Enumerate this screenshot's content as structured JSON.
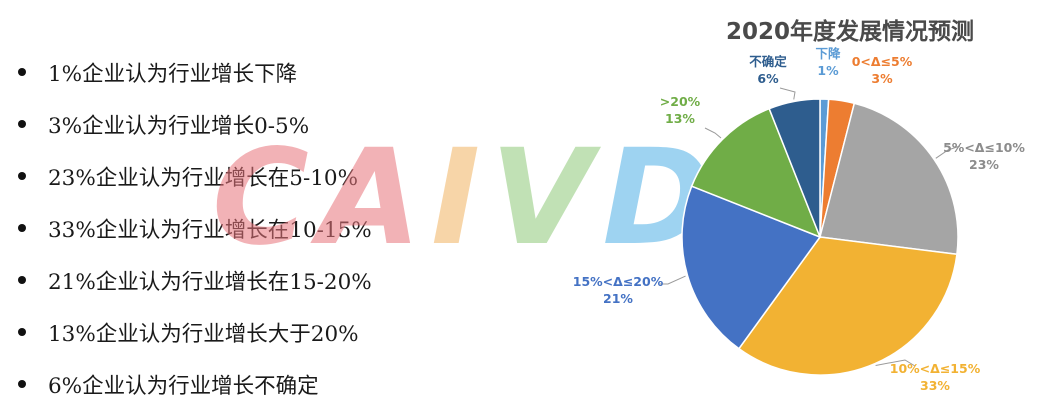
{
  "bullets": [
    "1%企业认为行业增长下降",
    "3%企业认为行业增长0-5%",
    "23%企业认为行业增长在5-10%",
    "33%企业认为行业增长在10-15%",
    "21%企业认为行业增长在15-20%",
    "13%企业认为行业增长大于20%",
    "6%企业认为行业增长不确定"
  ],
  "watermark": {
    "text": "CAIVD",
    "colors": [
      "#e8747b",
      "#e8747b",
      "#f2b462",
      "#8fca7a",
      "#4fb0e6"
    ]
  },
  "chart_data": {
    "type": "pie",
    "title": "2020年度发展情况预测",
    "slices": [
      {
        "label": "下降",
        "value_label": "1%",
        "value": 1,
        "color": "#5b9bd5"
      },
      {
        "label": "0<Δ≤5%",
        "value_label": "3%",
        "value": 3,
        "color": "#ed7d31"
      },
      {
        "label": "5%<Δ≤10%",
        "value_label": "23%",
        "value": 23,
        "color": "#a5a5a5"
      },
      {
        "label": "10%<Δ≤15%",
        "value_label": "33%",
        "value": 33,
        "color": "#f2b233"
      },
      {
        "label": "15%<Δ≤20%",
        "value_label": "21%",
        "value": 21,
        "color": "#4472c4"
      },
      {
        "label": ">20%",
        "value_label": "13%",
        "value": 13,
        "color": "#70ad47"
      },
      {
        "label": "不确定",
        "value_label": "6%",
        "value": 6,
        "color": "#2e5d8e"
      }
    ]
  }
}
